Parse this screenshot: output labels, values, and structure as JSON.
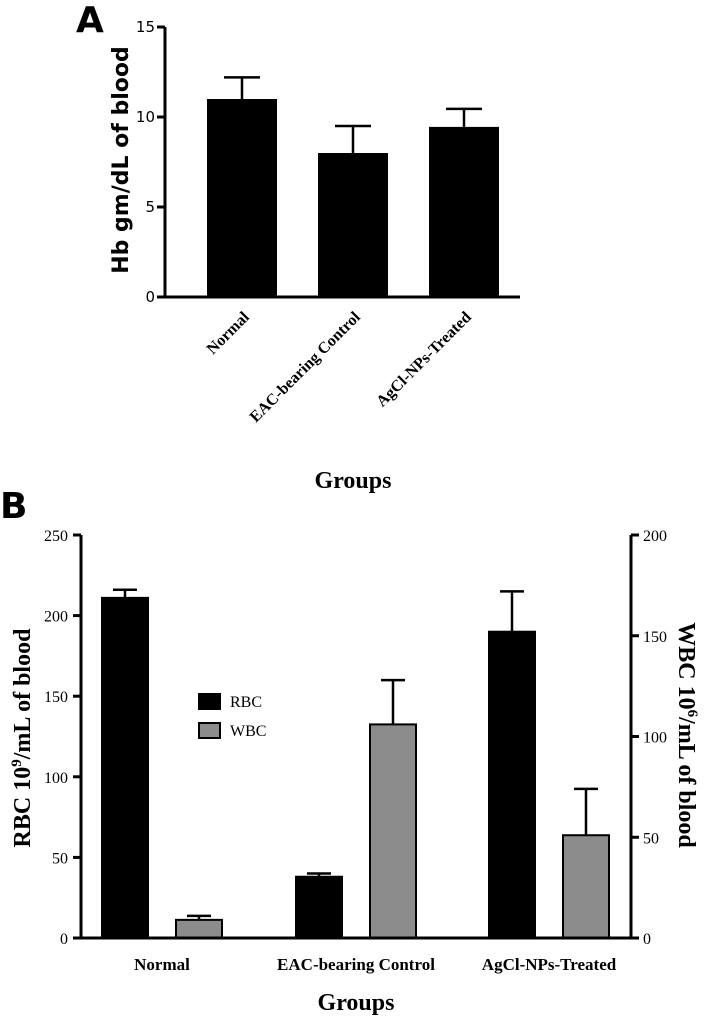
{
  "panels": {
    "a": {
      "letter": "A"
    },
    "b": {
      "letter": "B"
    }
  },
  "colors": {
    "bar_black": "#000000",
    "bar_gray": "#8c8c8c",
    "axis": "#000000"
  },
  "chart_data": [
    {
      "type": "bar",
      "panel": "A",
      "categories": [
        "Normal",
        "EAC-bearing Control",
        "AgCl-NPs-Treated"
      ],
      "values": [
        11.0,
        8.0,
        9.45
      ],
      "errors": [
        1.2,
        1.5,
        1.0
      ],
      "xlabel": "Groups",
      "ylabel": "Hb gm/dL of blood",
      "ylim": [
        0,
        15
      ],
      "yticks": [
        "0",
        "5",
        "10",
        "15"
      ],
      "tick_label_rotation": "45deg",
      "legend": null
    },
    {
      "type": "bar",
      "panel": "B",
      "categories": [
        "Normal",
        "EAC-bearing Control",
        "AgCl-NPs-Treated"
      ],
      "xlabel": "Groups",
      "ylabel_left": {
        "main": "RBC 10",
        "sup": "9",
        "rest": "/mL of blood"
      },
      "ylabel_right": {
        "main": "WBC 10",
        "sup": "6",
        "rest": "/mL of blood"
      },
      "ylim_left": [
        0,
        250
      ],
      "ylim_right": [
        0,
        200
      ],
      "yticks_left": [
        "0",
        "50",
        "100",
        "150",
        "200",
        "250"
      ],
      "yticks_right": [
        "0",
        "50",
        "100",
        "150",
        "200"
      ],
      "legend": "center-left",
      "series": [
        {
          "name": "RBC",
          "axis": "left",
          "color": "#000000",
          "values": [
            211,
            38,
            190
          ],
          "errors": [
            5,
            2,
            25
          ]
        },
        {
          "name": "WBC",
          "axis": "right",
          "color": "#8c8c8c",
          "values": [
            9,
            106,
            51
          ],
          "errors": [
            2,
            22,
            23
          ]
        }
      ]
    }
  ]
}
